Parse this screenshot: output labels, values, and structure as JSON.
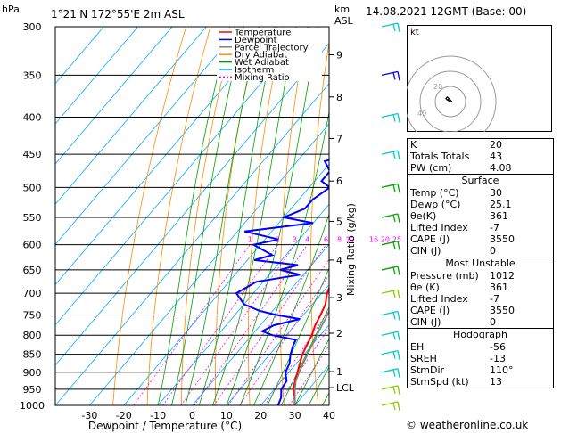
{
  "header": {
    "location": "1°21'N  172°55'E  2m  ASL",
    "date": "14.08.2021  12GMT  (Base: 00)",
    "left_unit": "hPa",
    "right_unit_km": "km",
    "right_unit_asl": "ASL",
    "mixing_ratio_label": "Mixing Ratio (g/kg)"
  },
  "chart_data": {
    "type": "line",
    "xlabel": "Dewpoint / Temperature (°C)",
    "ylabel": "hPa",
    "xlim": [
      -40,
      40
    ],
    "ylim": [
      1000,
      300
    ],
    "y_scale": "log-pressure",
    "x_ticks": [
      -30,
      -20,
      -10,
      0,
      10,
      20,
      30,
      40
    ],
    "pressure_levels": [
      300,
      350,
      400,
      450,
      500,
      550,
      600,
      650,
      700,
      750,
      800,
      850,
      900,
      950,
      1000
    ],
    "height_ticks": [
      {
        "km": "9",
        "p": 328
      },
      {
        "km": "8",
        "p": 375
      },
      {
        "km": "7",
        "p": 428
      },
      {
        "km": "6",
        "p": 490
      },
      {
        "km": "5",
        "p": 557
      },
      {
        "km": "4",
        "p": 630
      },
      {
        "km": "3",
        "p": 710
      },
      {
        "km": "2",
        "p": 795
      },
      {
        "km": "1",
        "p": 898
      },
      {
        "km": "LCL",
        "p": 945
      }
    ],
    "mixing_ratio_labels": [
      "1",
      "2",
      "3",
      "4",
      "6",
      "8",
      "10",
      "16",
      "20",
      "25"
    ],
    "legend": [
      {
        "name": "Temperature",
        "color": "#ff0000"
      },
      {
        "name": "Dewpoint",
        "color": "#0000ff"
      },
      {
        "name": "Parcel Trajectory",
        "color": "#808080"
      },
      {
        "name": "Dry Adiabat",
        "color": "#ff8c00"
      },
      {
        "name": "Wet Adiabat",
        "color": "#00a000"
      },
      {
        "name": "Isotherm",
        "color": "#00aaff"
      },
      {
        "name": "Mixing Ratio",
        "color": "#ff00ff"
      }
    ],
    "series": [
      {
        "name": "Temperature",
        "color": "#ff0000",
        "points": [
          [
            1000,
            30
          ],
          [
            975,
            28
          ],
          [
            950,
            25.5
          ],
          [
            925,
            24
          ],
          [
            900,
            22.5
          ],
          [
            875,
            21
          ],
          [
            850,
            19.5
          ],
          [
            825,
            18.5
          ],
          [
            800,
            17.5
          ],
          [
            775,
            16
          ],
          [
            750,
            15
          ],
          [
            725,
            13.8
          ],
          [
            700,
            11.5
          ],
          [
            675,
            10
          ],
          [
            650,
            8.5
          ],
          [
            625,
            7
          ],
          [
            600,
            5
          ],
          [
            575,
            3
          ],
          [
            550,
            0.8
          ],
          [
            525,
            -1.5
          ],
          [
            500,
            -4
          ],
          [
            475,
            -6.5
          ],
          [
            450,
            -9.5
          ],
          [
            425,
            -12.5
          ],
          [
            400,
            -15.5
          ],
          [
            375,
            -19
          ],
          [
            350,
            -22.5
          ],
          [
            325,
            -27
          ],
          [
            300,
            -31
          ]
        ]
      },
      {
        "name": "Dewpoint",
        "color": "#0000ff",
        "points": [
          [
            1000,
            25.1
          ],
          [
            975,
            24
          ],
          [
            950,
            22
          ],
          [
            925,
            21.5
          ],
          [
            900,
            19
          ],
          [
            875,
            18
          ],
          [
            850,
            16
          ],
          [
            825,
            14.5
          ],
          [
            812,
            14
          ],
          [
            800,
            6
          ],
          [
            790,
            2
          ],
          [
            775,
            4
          ],
          [
            760,
            10
          ],
          [
            750,
            2
          ],
          [
            740,
            -4
          ],
          [
            725,
            -10
          ],
          [
            700,
            -15
          ],
          [
            675,
            -12
          ],
          [
            660,
            -1
          ],
          [
            650,
            -8
          ],
          [
            640,
            -4
          ],
          [
            630,
            -18
          ],
          [
            620,
            -14
          ],
          [
            600,
            -22
          ],
          [
            590,
            -16
          ],
          [
            575,
            -28
          ],
          [
            560,
            -10
          ],
          [
            550,
            -20
          ],
          [
            535,
            -16
          ],
          [
            520,
            -16
          ],
          [
            500,
            -14
          ],
          [
            490,
            -18
          ],
          [
            475,
            -18
          ],
          [
            460,
            -22
          ],
          [
            450,
            -16
          ],
          [
            440,
            -16
          ],
          [
            425,
            -17
          ],
          [
            400,
            -19
          ],
          [
            375,
            -21
          ],
          [
            350,
            -25
          ],
          [
            335,
            -38
          ],
          [
            300,
            -41
          ]
        ]
      },
      {
        "name": "Parcel Trajectory",
        "color": "#808080",
        "points": [
          [
            1000,
            30
          ],
          [
            950,
            26
          ],
          [
            925,
            24.2
          ],
          [
            900,
            23
          ],
          [
            850,
            21
          ],
          [
            800,
            19
          ],
          [
            750,
            17
          ],
          [
            700,
            14.5
          ],
          [
            650,
            12
          ],
          [
            600,
            9
          ],
          [
            550,
            6
          ],
          [
            500,
            2.5
          ],
          [
            450,
            -1.5
          ],
          [
            400,
            -6
          ],
          [
            350,
            -11.5
          ],
          [
            300,
            -18
          ]
        ]
      }
    ],
    "hodograph": {
      "unit": "kt",
      "ring_labels": [
        "20",
        "40"
      ],
      "trace_kt": [
        [
          0,
          0
        ],
        [
          -4,
          -2
        ],
        [
          -6,
          -4
        ],
        [
          -4,
          -6
        ],
        [
          -2,
          -4
        ],
        [
          -3,
          -3
        ],
        [
          0,
          -2
        ],
        [
          2,
          0
        ]
      ]
    },
    "wind_barbs": [
      {
        "p": 300,
        "color": "#00cccc"
      },
      {
        "p": 350,
        "color": "#0000ff"
      },
      {
        "p": 400,
        "color": "#00cccc"
      },
      {
        "p": 450,
        "color": "#00cccc"
      },
      {
        "p": 500,
        "color": "#00aa00"
      },
      {
        "p": 550,
        "color": "#00aa00"
      },
      {
        "p": 600,
        "color": "#00aa00"
      },
      {
        "p": 650,
        "color": "#00aa00"
      },
      {
        "p": 700,
        "color": "#88cc00"
      },
      {
        "p": 750,
        "color": "#00cccc"
      },
      {
        "p": 800,
        "color": "#00cccc"
      },
      {
        "p": 850,
        "color": "#00cccc"
      },
      {
        "p": 900,
        "color": "#00cccc"
      },
      {
        "p": 950,
        "color": "#88cc00"
      },
      {
        "p": 1000,
        "color": "#88cc00"
      }
    ]
  },
  "indices": [
    {
      "label": "K",
      "value": "20"
    },
    {
      "label": "Totals Totals",
      "value": "43"
    },
    {
      "label": "PW (cm)",
      "value": "4.08"
    }
  ],
  "surface": {
    "title": "Surface",
    "rows": [
      {
        "label": "Temp (°C)",
        "value": "30"
      },
      {
        "label": "Dewp (°C)",
        "value": "25.1"
      },
      {
        "label": "θe(K)",
        "value": "361"
      },
      {
        "label": "Lifted Index",
        "value": "-7"
      },
      {
        "label": "CAPE (J)",
        "value": "3550"
      },
      {
        "label": "CIN (J)",
        "value": "0"
      }
    ]
  },
  "most_unstable": {
    "title": "Most Unstable",
    "rows": [
      {
        "label": "Pressure (mb)",
        "value": "1012"
      },
      {
        "label": "θe (K)",
        "value": "361"
      },
      {
        "label": "Lifted Index",
        "value": "-7"
      },
      {
        "label": "CAPE (J)",
        "value": "3550"
      },
      {
        "label": "CIN (J)",
        "value": "0"
      }
    ]
  },
  "hodograph_table": {
    "title": "Hodograph",
    "rows": [
      {
        "label": "EH",
        "value": "-56"
      },
      {
        "label": "SREH",
        "value": "-13"
      },
      {
        "label": "StmDir",
        "value": "110°"
      },
      {
        "label": "StmSpd (kt)",
        "value": "13"
      }
    ]
  },
  "copyright": "© weatheronline.co.uk"
}
